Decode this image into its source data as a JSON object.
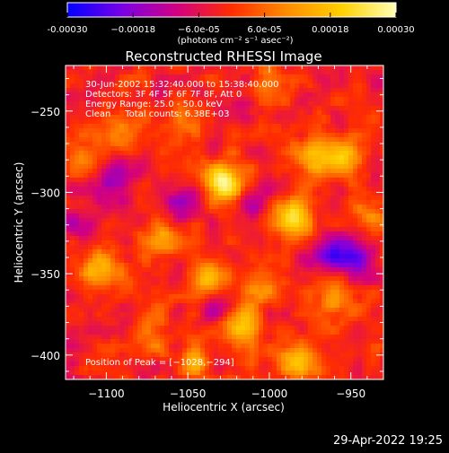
{
  "chart_data": {
    "type": "heatmap",
    "title": "Reconstructed RHESSI Image",
    "xlabel": "Heliocentric X (arcsec)",
    "ylabel": "Heliocentric Y (arcsec)",
    "xlim": [
      -1125,
      -930
    ],
    "ylim": [
      -415,
      -222
    ],
    "xticks": [
      -1100,
      -1050,
      -1000,
      -950
    ],
    "xtick_labels": [
      "−1100",
      "−1050",
      "−1000",
      "−950"
    ],
    "yticks": [
      -250,
      -300,
      -350,
      -400
    ],
    "ytick_labels": [
      "−250",
      "−300",
      "−350",
      "−400"
    ],
    "colorbar": {
      "range": [
        -0.0003,
        0.0003
      ],
      "ticks": [
        -0.0003,
        -0.00018,
        -6e-05,
        6e-05,
        0.00018,
        0.0003
      ],
      "tick_labels": [
        "-0.00030",
        "−0.00018",
        "−6.0e-05",
        "6.0e-05",
        "0.00018",
        "0.00030"
      ],
      "unit_label": "(photons cm⁻² s⁻¹ asec⁻²)",
      "colors": [
        "#0000ff",
        "#7a00e6",
        "#d20082",
        "#ff2d00",
        "#ff8c00",
        "#ffd000",
        "#ffffb4"
      ]
    },
    "annotations": [
      "30-Jun-2002 15:32:40.000 to 15:38:40.000",
      "Detectors: 3F 4F 5F 6F 7F 8F, Att 0",
      "Energy Range: 25.0 - 50.0 keV",
      "Clean     Total counts: 6.38E+03"
    ],
    "peak_label": "Position of Peak = [−1028,−294]",
    "peak": [
      -1028,
      -294
    ],
    "sources": [
      {
        "x": -1028,
        "y": -294,
        "value": 0.0003
      },
      {
        "x": -986,
        "y": -316,
        "value": 0.00026
      },
      {
        "x": -975,
        "y": -279,
        "value": 0.00018
      },
      {
        "x": -954,
        "y": -277,
        "value": 0.0002
      },
      {
        "x": -1064,
        "y": -330,
        "value": 0.00015
      },
      {
        "x": -1102,
        "y": -346,
        "value": 0.0002
      },
      {
        "x": -1037,
        "y": -352,
        "value": 0.00022
      },
      {
        "x": -1003,
        "y": -358,
        "value": 0.00012
      },
      {
        "x": -1017,
        "y": -382,
        "value": 0.0002
      },
      {
        "x": -1111,
        "y": -279,
        "value": 0.00012
      },
      {
        "x": -1089,
        "y": -264,
        "value": 0.00014
      },
      {
        "x": -1047,
        "y": -254,
        "value": 0.0001
      },
      {
        "x": -960,
        "y": -368,
        "value": 0.00012
      },
      {
        "x": -983,
        "y": -404,
        "value": 0.00018
      },
      {
        "x": -1046,
        "y": -404,
        "value": 0.00015
      },
      {
        "x": -1072,
        "y": -387,
        "value": 0.0001
      },
      {
        "x": -940,
        "y": -314,
        "value": 0.00012
      },
      {
        "x": -1003,
        "y": -236,
        "value": 9e-05
      }
    ],
    "sinks": [
      {
        "x": -1096,
        "y": -293,
        "value": -0.00014
      },
      {
        "x": -1052,
        "y": -304,
        "value": -0.00012
      },
      {
        "x": -1008,
        "y": -305,
        "value": -0.0001
      },
      {
        "x": -962,
        "y": -338,
        "value": -0.00016
      },
      {
        "x": -946,
        "y": -339,
        "value": -0.00018
      },
      {
        "x": -1034,
        "y": -372,
        "value": -0.0001
      },
      {
        "x": -1120,
        "y": -321,
        "value": -0.0001
      },
      {
        "x": -1020,
        "y": -245,
        "value": -8e-05
      }
    ],
    "background": -2e-05,
    "texture_amplitude": 8e-05,
    "grid": false,
    "timestamp": "29-Apr-2022 19:25"
  }
}
